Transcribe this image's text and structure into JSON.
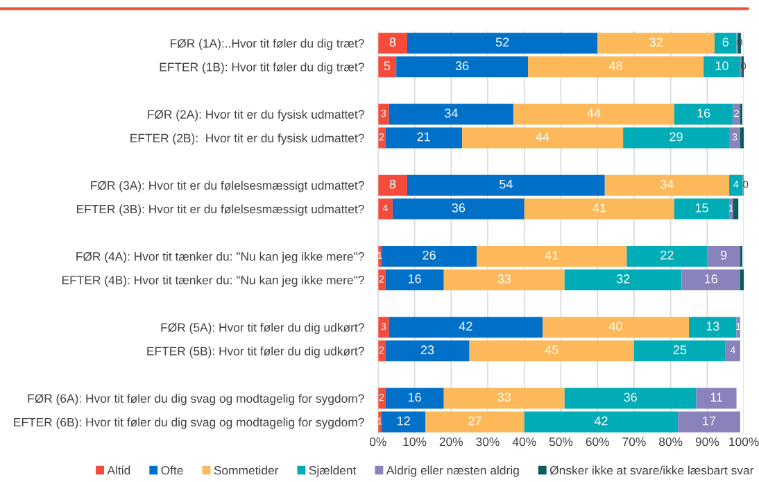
{
  "chart_data": {
    "type": "bar",
    "orientation": "horizontal",
    "stacked": true,
    "legend": "bottom",
    "grid": "x",
    "categories": [
      "FØR (1A):..Hvor tit føler du dig træt?",
      "EFTER (1B): Hvor tit føler du dig træt?",
      null,
      "FØR (2A): Hvor tit er du fysisk udmattet?",
      "EFTER (2B):  Hvor tit er du fysisk udmattet?",
      null,
      "FØR (3A): Hvor tit er du følelsesmæssigt udmattet?",
      "EFTER (3B): Hvor tit er du følelsesmæssigt udmattet?",
      null,
      "FØR (4A): Hvor tit tænker du: \"Nu kan jeg ikke mere\"?",
      "EFTER (4B): Hvor tit tænker du: \"Nu kan jeg ikke mere\"?",
      null,
      "FØR (5A): Hvor tit føler du dig udkørt?",
      "EFTER (5B): Hvor tit føler du dig udkørt?",
      null,
      "FØR (6A): Hvor tit føler du dig svag og modtagelig for sygdom?",
      "EFTER (6B): Hvor tit føler du dig svag og modtagelig for sygdom?"
    ],
    "xlim": [
      0,
      100
    ],
    "xticks": [
      {
        "value": 0,
        "label": "0%"
      },
      {
        "value": 10,
        "label": "10%"
      },
      {
        "value": 20,
        "label": "20%"
      },
      {
        "value": 30,
        "label": "30%"
      },
      {
        "value": 40,
        "label": "40%"
      },
      {
        "value": 50,
        "label": "50%"
      },
      {
        "value": 60,
        "label": "60%"
      },
      {
        "value": 70,
        "label": "70%"
      },
      {
        "value": 80,
        "label": "80%"
      },
      {
        "value": 90,
        "label": "90%"
      },
      {
        "value": 100,
        "label": "100%"
      }
    ],
    "series": [
      {
        "name": "Altid",
        "color": "#f44b3b",
        "values": [
          8,
          5,
          null,
          3,
          2,
          null,
          8,
          4,
          null,
          1,
          2,
          null,
          3,
          2,
          null,
          2,
          1
        ],
        "value_labels": [
          "8",
          "5",
          null,
          "3",
          "2",
          null,
          "8",
          "4",
          null,
          "1",
          "2",
          null,
          "3",
          "2",
          null,
          "2",
          "1"
        ]
      },
      {
        "name": "Ofte",
        "color": "#0070c8",
        "values": [
          52,
          36,
          null,
          34,
          21,
          null,
          54,
          36,
          null,
          26,
          16,
          null,
          42,
          23,
          null,
          16,
          12
        ],
        "value_labels": [
          "52",
          "36",
          null,
          "34",
          "21",
          null,
          "54",
          "36",
          null,
          "26",
          "16",
          null,
          "42",
          "23",
          null,
          "16",
          "12"
        ]
      },
      {
        "name": "Sommetider",
        "color": "#fdb85a",
        "values": [
          32,
          48,
          null,
          44,
          44,
          null,
          34,
          41,
          null,
          41,
          33,
          null,
          40,
          45,
          null,
          33,
          27
        ],
        "value_labels": [
          "32",
          "48",
          null,
          "44",
          "44",
          null,
          "34",
          "41",
          null,
          "41",
          "33",
          null,
          "40",
          "45",
          null,
          "33",
          "27"
        ]
      },
      {
        "name": "Sjældent",
        "color": "#00acb5",
        "values": [
          6,
          10,
          null,
          16,
          29,
          null,
          3.7,
          15,
          null,
          22,
          32,
          null,
          13,
          25,
          null,
          36,
          42
        ],
        "value_labels": [
          "6",
          "10",
          null,
          "16",
          "29",
          null,
          "4",
          "15",
          null,
          "22",
          "32",
          null,
          "13",
          "25",
          null,
          "36",
          "42"
        ]
      },
      {
        "name": "Aldrig eller næsten aldrig",
        "color": "#8a82bb",
        "values": [
          0.4,
          0.4,
          null,
          2,
          3,
          null,
          0.3,
          1,
          null,
          9,
          16,
          null,
          1,
          4,
          null,
          11,
          17
        ],
        "value_labels": [
          "0",
          "0",
          null,
          "2",
          "3",
          null,
          "0",
          "1",
          null,
          "9",
          "16",
          null,
          "1",
          "4",
          null,
          "11",
          "17"
        ]
      },
      {
        "name": "Ønsker ikke at svare/ikke læsbart svar",
        "color": "#0b5c5c",
        "values": [
          0.8,
          0.6,
          null,
          0.6,
          1,
          null,
          null,
          1.5,
          null,
          0.6,
          1,
          null,
          null,
          null,
          null,
          null,
          null
        ],
        "value_labels": [
          null,
          null,
          null,
          null,
          null,
          null,
          null,
          null,
          null,
          null,
          null,
          null,
          null,
          null,
          null,
          null,
          null
        ]
      }
    ]
  }
}
